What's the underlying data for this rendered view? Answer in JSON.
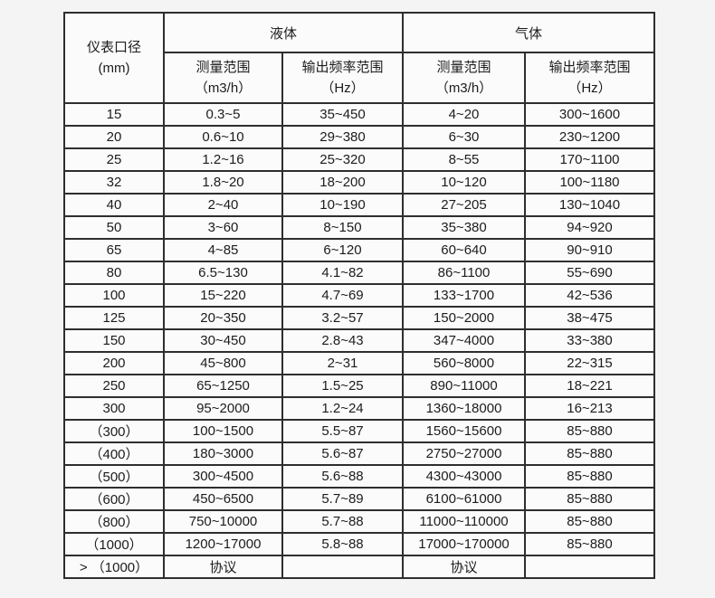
{
  "page": {
    "background_color": "#f4f4f4",
    "table_background_color": "#fbfbfb",
    "border_color": "#2e2e2e",
    "text_color": "#1c1c1c"
  },
  "chart_data": {
    "type": "table",
    "title": "",
    "header": {
      "diameter_label": "仪表口径",
      "diameter_unit": "(mm)",
      "groups": [
        {
          "label": "液体",
          "columns": [
            {
              "title": "测量范围",
              "unit": "（m3/h）"
            },
            {
              "title": "输出频率范围",
              "unit": "（Hz）"
            }
          ]
        },
        {
          "label": "气体",
          "columns": [
            {
              "title": "测量范围",
              "unit": "（m3/h）"
            },
            {
              "title": "输出频率范围",
              "unit": "（Hz）"
            }
          ]
        }
      ]
    },
    "rows": [
      [
        "15",
        "0.3~5",
        "35~450",
        "4~20",
        "300~1600"
      ],
      [
        "20",
        "0.6~10",
        "29~380",
        "6~30",
        "230~1200"
      ],
      [
        "25",
        "1.2~16",
        "25~320",
        "8~55",
        "170~1100"
      ],
      [
        "32",
        "1.8~20",
        "18~200",
        "10~120",
        "100~1180"
      ],
      [
        "40",
        "2~40",
        "10~190",
        "27~205",
        "130~1040"
      ],
      [
        "50",
        "3~60",
        "8~150",
        "35~380",
        "94~920"
      ],
      [
        "65",
        "4~85",
        "6~120",
        "60~640",
        "90~910"
      ],
      [
        "80",
        "6.5~130",
        "4.1~82",
        "86~1100",
        "55~690"
      ],
      [
        "100",
        "15~220",
        "4.7~69",
        "133~1700",
        "42~536"
      ],
      [
        "125",
        "20~350",
        "3.2~57",
        "150~2000",
        "38~475"
      ],
      [
        "150",
        "30~450",
        "2.8~43",
        "347~4000",
        "33~380"
      ],
      [
        "200",
        "45~800",
        "2~31",
        "560~8000",
        "22~315"
      ],
      [
        "250",
        "65~1250",
        "1.5~25",
        "890~11000",
        "18~221"
      ],
      [
        "300",
        "95~2000",
        "1.2~24",
        "1360~18000",
        "16~213"
      ],
      [
        "（300）",
        "100~1500",
        "5.5~87",
        "1560~15600",
        "85~880"
      ],
      [
        "（400）",
        "180~3000",
        "5.6~87",
        "2750~27000",
        "85~880"
      ],
      [
        "（500）",
        "300~4500",
        "5.6~88",
        "4300~43000",
        "85~880"
      ],
      [
        "（600）",
        "450~6500",
        "5.7~89",
        "6100~61000",
        "85~880"
      ],
      [
        "（800）",
        "750~10000",
        "5.7~88",
        "11000~110000",
        "85~880"
      ],
      [
        "（1000）",
        "1200~17000",
        "5.8~88",
        "17000~170000",
        "85~880"
      ],
      [
        "> （1000）",
        "协议",
        "",
        "协议",
        ""
      ]
    ]
  }
}
